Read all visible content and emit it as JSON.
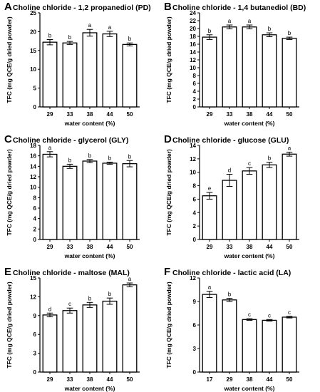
{
  "chart_data": [
    {
      "type": "bar",
      "letter": "A",
      "title": "Choline chloride - 1,2 propanediol (PD)",
      "xlabel": "water content (%)",
      "ylabel": "TFC (mg QCE/g dried powder)",
      "categories": [
        "29",
        "33",
        "38",
        "44",
        "50"
      ],
      "values": [
        17.2,
        17.0,
        19.7,
        19.4,
        16.6
      ],
      "errors": [
        0.7,
        0.4,
        0.9,
        0.7,
        0.4
      ],
      "labels": [
        "b",
        "b",
        "a",
        "a",
        "b"
      ],
      "ylim": [
        0,
        25
      ],
      "yticks": [
        0,
        5,
        10,
        15,
        20,
        25
      ]
    },
    {
      "type": "bar",
      "letter": "B",
      "title": "Choline chloride - 1,4 butanediol (BD)",
      "xlabel": "water content (%)",
      "ylabel": "TFC (mg QCE/g dried powder)",
      "categories": [
        "29",
        "33",
        "38",
        "44",
        "50"
      ],
      "values": [
        17.8,
        20.4,
        20.4,
        18.4,
        17.5
      ],
      "errors": [
        0.6,
        0.5,
        0.5,
        0.5,
        0.3
      ],
      "labels": [
        "b",
        "a",
        "a",
        "b",
        "b"
      ],
      "ylim": [
        0,
        24
      ],
      "yticks": [
        0,
        2,
        4,
        6,
        8,
        10,
        12,
        14,
        16,
        18,
        20,
        22,
        24
      ]
    },
    {
      "type": "bar",
      "letter": "C",
      "title": "Choline chloride - glycerol (GLY)",
      "xlabel": "water content (%)",
      "ylabel": "TFC (mg QCE/g dried powder)",
      "categories": [
        "29",
        "33",
        "38",
        "44",
        "50"
      ],
      "values": [
        16.3,
        14.0,
        15.0,
        14.6,
        14.5
      ],
      "errors": [
        0.5,
        0.4,
        0.3,
        0.2,
        0.6
      ],
      "labels": [
        "a",
        "b",
        "b",
        "b",
        "b"
      ],
      "ylim": [
        0,
        18
      ],
      "yticks": [
        0,
        2,
        4,
        6,
        8,
        10,
        12,
        14,
        16,
        18
      ]
    },
    {
      "type": "bar",
      "letter": "D",
      "title": "Choline chloride - glucose (GLU)",
      "xlabel": "water content (%)",
      "ylabel": "TFC (mg QCE/g dried powder)",
      "categories": [
        "29",
        "33",
        "38",
        "44",
        "50"
      ],
      "values": [
        6.5,
        8.8,
        10.2,
        11.1,
        12.7
      ],
      "errors": [
        0.5,
        0.9,
        0.5,
        0.4,
        0.3
      ],
      "labels": [
        "e",
        "d",
        "c",
        "b",
        "a"
      ],
      "ylim": [
        0,
        14
      ],
      "yticks": [
        0,
        2,
        4,
        6,
        8,
        10,
        12,
        14
      ]
    },
    {
      "type": "bar",
      "letter": "E",
      "title": "Choline chloride - maltose (MAL)",
      "xlabel": "water content (%)",
      "ylabel": "TFC (mg QCE/g dried powder)",
      "categories": [
        "29",
        "33",
        "38",
        "44",
        "50"
      ],
      "values": [
        9.1,
        9.8,
        10.7,
        11.3,
        13.9
      ],
      "errors": [
        0.3,
        0.4,
        0.4,
        0.5,
        0.3
      ],
      "labels": [
        "d",
        "c",
        "b",
        "b",
        "a"
      ],
      "ylim": [
        0,
        15
      ],
      "yticks": [
        0,
        3,
        6,
        9,
        12,
        15
      ]
    },
    {
      "type": "bar",
      "letter": "F",
      "title": "Choline chloride - lactic acid (LA)",
      "xlabel": "water content (%)",
      "ylabel": "TFC (mg QCE/g dried powder)",
      "categories": [
        "17",
        "29",
        "38",
        "44",
        "50"
      ],
      "values": [
        9.9,
        9.2,
        6.7,
        6.6,
        7.0
      ],
      "errors": [
        0.4,
        0.2,
        0.1,
        0.1,
        0.1
      ],
      "labels": [
        "a",
        "b",
        "c",
        "c",
        "c"
      ],
      "ylim": [
        0,
        12
      ],
      "yticks": [
        0,
        3,
        6,
        9,
        12
      ]
    }
  ]
}
